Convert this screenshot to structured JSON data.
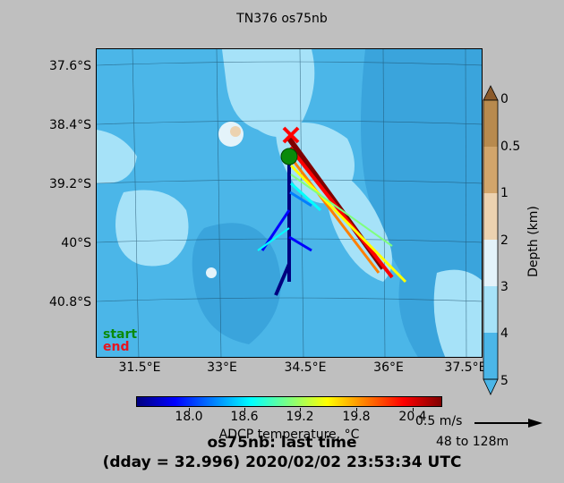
{
  "title": "TN376 os75nb",
  "map": {
    "lat_labels": [
      "37.6°S",
      "38.4°S",
      "39.2°S",
      "40°S",
      "40.8°S"
    ],
    "lon_labels": [
      "31.5°E",
      "33°E",
      "34.5°E",
      "36°E",
      "37.5°E"
    ],
    "legend": {
      "start": "start",
      "end": "end",
      "start_color": "#0a8a0a",
      "end_color": "#e8141e"
    },
    "start_marker": {
      "lon": 34.3,
      "lat": -38.85,
      "color": "#0a8a0a"
    },
    "end_marker": {
      "lon": 34.35,
      "lat": -38.55,
      "color": "#ff0000"
    }
  },
  "temperature_colorbar": {
    "ticks": [
      "18.0",
      "18.6",
      "19.2",
      "19.8",
      "20.4"
    ],
    "label": "ADCP temperature, °C"
  },
  "depth_colorbar": {
    "ticks": [
      "0",
      "0.5",
      "1",
      "2",
      "3",
      "4",
      "5"
    ],
    "label": "Depth (km)",
    "colors": [
      "#8b5a2b",
      "#b88a4e",
      "#d2a56b",
      "#ecd2b0",
      "#e4f3fa",
      "#a6e2f8",
      "#4bb6e8",
      "#4bb6e8"
    ]
  },
  "scale": {
    "speed": "0.5 m/s",
    "range": "48 to 128m"
  },
  "footer": {
    "line1": "os75nb: last time",
    "line2": "(dday = 32.996) 2020/02/02 23:53:34 UTC"
  }
}
